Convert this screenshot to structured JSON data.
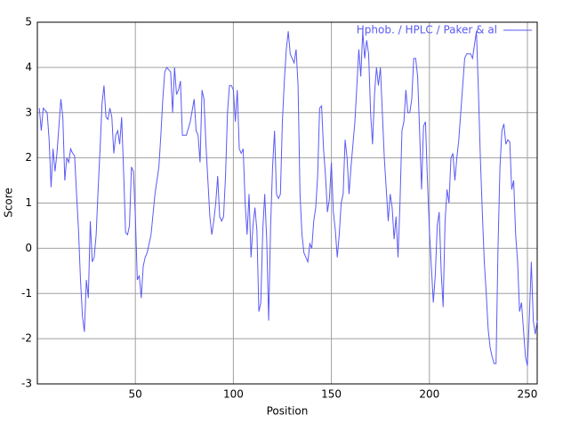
{
  "chart_data": {
    "type": "line",
    "xlabel": "Position",
    "ylabel": "Score",
    "xlim": [
      0,
      255
    ],
    "ylim": [
      -3,
      5
    ],
    "xticks": [
      50,
      100,
      150,
      200,
      250
    ],
    "yticks": [
      -3,
      -2,
      -1,
      0,
      1,
      2,
      3,
      4,
      5
    ],
    "grid": true,
    "legend": "top-right",
    "x": [
      1,
      2,
      3,
      5,
      6,
      7,
      8,
      9,
      10,
      12,
      13,
      14,
      15,
      16,
      17,
      18,
      19,
      20,
      21,
      22,
      23,
      24,
      25,
      26,
      27,
      28,
      29,
      30,
      31,
      32,
      33,
      34,
      35,
      36,
      37,
      38,
      39,
      40,
      41,
      42,
      43,
      44,
      45,
      46,
      47,
      48,
      49,
      50,
      51,
      52,
      53,
      54,
      55,
      56,
      58,
      60,
      62,
      63,
      64,
      65,
      66,
      68,
      69,
      70,
      71,
      72,
      73,
      74,
      76,
      78,
      80,
      81,
      82,
      83,
      84,
      85,
      86,
      87,
      88,
      89,
      90,
      91,
      92,
      93,
      94,
      95,
      96,
      97,
      98,
      99,
      100,
      101,
      102,
      103,
      104,
      105,
      106,
      107,
      108,
      109,
      110,
      111,
      112,
      113,
      114,
      115,
      116,
      117,
      118,
      119,
      120,
      121,
      122,
      123,
      124,
      125,
      126,
      127,
      128,
      129,
      130,
      131,
      132,
      133,
      134,
      135,
      136,
      137,
      138,
      139,
      140,
      141,
      142,
      143,
      144,
      145,
      146,
      147,
      148,
      149,
      150,
      151,
      152,
      153,
      154,
      155,
      156,
      157,
      158,
      159,
      160,
      162,
      163,
      164,
      165,
      166,
      167,
      168,
      169,
      170,
      171,
      172,
      173,
      174,
      175,
      176,
      177,
      178,
      179,
      180,
      181,
      182,
      183,
      184,
      185,
      186,
      187,
      188,
      189,
      190,
      191,
      192,
      193,
      194,
      195,
      196,
      197,
      198,
      199,
      200,
      201,
      202,
      203,
      204,
      205,
      206,
      207,
      208,
      209,
      210,
      211,
      212,
      213,
      214,
      215,
      216,
      217,
      218,
      219,
      221,
      222,
      223,
      224,
      225,
      226,
      227,
      228,
      229,
      230,
      231,
      232,
      233,
      234,
      235,
      236,
      237,
      238,
      239,
      240,
      241,
      242,
      243,
      244,
      245,
      246,
      247,
      248,
      249,
      250,
      251,
      252,
      253,
      254,
      255
    ],
    "series": [
      {
        "name": "Hphob. / HPLC / Paker & al",
        "color": "#5a5af5",
        "values": [
          3.1,
          2.6,
          3.1,
          3.0,
          2.4,
          1.35,
          2.2,
          1.7,
          2.1,
          3.3,
          2.9,
          1.5,
          2.0,
          1.9,
          2.2,
          2.1,
          2.05,
          1.2,
          0.4,
          -0.7,
          -1.5,
          -1.85,
          -0.7,
          -1.1,
          0.6,
          -0.3,
          -0.2,
          0.3,
          1.3,
          2.2,
          3.2,
          3.6,
          2.9,
          2.85,
          3.1,
          2.9,
          2.1,
          2.5,
          2.6,
          2.3,
          2.9,
          1.7,
          0.35,
          0.3,
          0.5,
          1.8,
          1.7,
          0.7,
          -0.7,
          -0.6,
          -1.1,
          -0.4,
          -0.2,
          -0.1,
          0.3,
          1.2,
          1.8,
          2.5,
          3.3,
          3.9,
          4.0,
          3.9,
          3.0,
          4.0,
          3.4,
          3.5,
          3.7,
          2.5,
          2.5,
          2.8,
          3.3,
          2.6,
          2.5,
          1.9,
          3.5,
          3.3,
          2.3,
          1.5,
          0.7,
          0.3,
          0.6,
          1.0,
          1.6,
          0.7,
          0.6,
          0.7,
          1.6,
          3.0,
          3.6,
          3.6,
          3.5,
          2.8,
          3.5,
          2.2,
          2.1,
          2.2,
          1.0,
          0.3,
          1.2,
          -0.2,
          0.5,
          0.9,
          0.4,
          -1.4,
          -1.2,
          0.4,
          1.2,
          0.2,
          -1.6,
          0.5,
          1.8,
          2.6,
          1.2,
          1.1,
          1.2,
          2.8,
          3.7,
          4.4,
          4.8,
          4.3,
          4.2,
          4.1,
          4.4,
          3.6,
          1.2,
          0.3,
          -0.1,
          -0.2,
          -0.3,
          0.1,
          0.0,
          0.6,
          0.9,
          1.6,
          3.1,
          3.15,
          2.2,
          1.6,
          0.8,
          1.1,
          1.9,
          0.8,
          0.4,
          -0.2,
          0.3,
          1.0,
          1.2,
          2.4,
          2.0,
          1.2,
          1.8,
          2.8,
          3.6,
          4.4,
          3.8,
          4.8,
          4.2,
          4.6,
          4.3,
          3.0,
          2.3,
          3.4,
          4.0,
          3.6,
          4.0,
          3.0,
          2.0,
          1.3,
          0.6,
          1.2,
          0.9,
          0.2,
          0.7,
          -0.2,
          1.0,
          2.6,
          2.8,
          3.5,
          3.0,
          3.0,
          3.3,
          4.2,
          4.2,
          3.8,
          2.6,
          1.3,
          2.7,
          2.8,
          1.5,
          0.4,
          -0.4,
          -1.2,
          -0.6,
          0.5,
          0.8,
          -0.5,
          -1.3,
          0.6,
          1.3,
          1.0,
          2.0,
          2.1,
          1.5,
          2.0,
          2.4,
          3.0,
          3.6,
          4.2,
          4.3,
          4.3,
          4.2,
          4.5,
          4.8,
          3.5,
          2.0,
          0.8,
          -0.3,
          -1.0,
          -1.8,
          -2.2,
          -2.4,
          -2.55,
          -2.55,
          0.0,
          1.8,
          2.6,
          2.75,
          2.3,
          2.4,
          2.35,
          1.3,
          1.5,
          0.3,
          -0.3,
          -1.4,
          -1.2,
          -1.8,
          -2.4,
          -2.6,
          -1.5,
          -0.3,
          -1.6,
          -1.9,
          -1.6
        ]
      }
    ]
  }
}
